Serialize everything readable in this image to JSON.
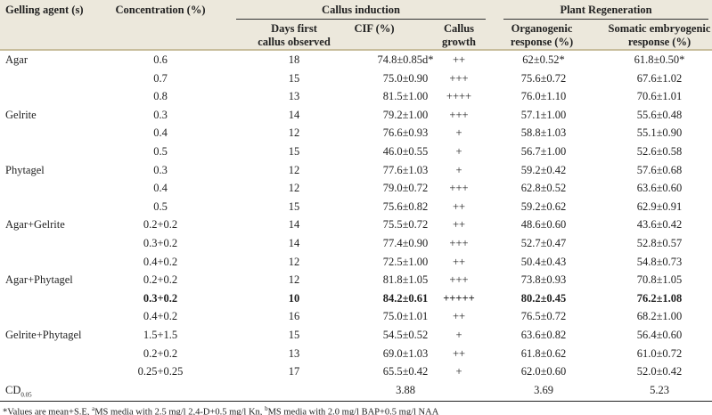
{
  "header": {
    "gelling_agent": "Gelling agent (s)",
    "concentration": "Concentration (%)",
    "callus_induction": "Callus induction",
    "plant_regeneration": "Plant Regeneration",
    "days_line1": "Days first",
    "days_line2": "callus observed",
    "cif": "CIF (%)",
    "growth_line1": "Callus",
    "growth_line2": "growth",
    "organo_line1": "Organogenic",
    "organo_line2": "response (%)",
    "somatic_line1": "Somatic embryogenic",
    "somatic_line2": "response (%)"
  },
  "rows": [
    {
      "agent": "Agar",
      "conc": "0.6",
      "days": "18",
      "cif": "74.8±0.85d*",
      "growth": "++",
      "organo": "62±0.52*",
      "somatic": "61.8±0.50*"
    },
    {
      "agent": "",
      "conc": "0.7",
      "days": "15",
      "cif": "75.0±0.90",
      "growth": "+++",
      "organo": "75.6±0.72",
      "somatic": "67.6±1.02"
    },
    {
      "agent": "",
      "conc": "0.8",
      "days": "13",
      "cif": "81.5±1.00",
      "growth": "++++",
      "organo": "76.0±1.10",
      "somatic": "70.6±1.01"
    },
    {
      "agent": "Gelrite",
      "conc": "0.3",
      "days": "14",
      "cif": "79.2±1.00",
      "growth": "+++",
      "organo": "57.1±1.00",
      "somatic": "55.6±0.48"
    },
    {
      "agent": "",
      "conc": "0.4",
      "days": "12",
      "cif": "76.6±0.93",
      "growth": "+",
      "organo": "58.8±1.03",
      "somatic": "55.1±0.90"
    },
    {
      "agent": "",
      "conc": "0.5",
      "days": "15",
      "cif": "46.0±0.55",
      "growth": "+",
      "organo": "56.7±1.00",
      "somatic": "52.6±0.58"
    },
    {
      "agent": "Phytagel",
      "conc": "0.3",
      "days": "12",
      "cif": "77.6±1.03",
      "growth": "+",
      "organo": "59.2±0.42",
      "somatic": "57.6±0.68"
    },
    {
      "agent": "",
      "conc": "0.4",
      "days": "12",
      "cif": "79.0±0.72",
      "growth": "+++",
      "organo": "62.8±0.52",
      "somatic": "63.6±0.60"
    },
    {
      "agent": "",
      "conc": "0.5",
      "days": "15",
      "cif": "75.6±0.82",
      "growth": "++",
      "organo": "59.2±0.62",
      "somatic": "62.9±0.91"
    },
    {
      "agent": "Agar+Gelrite",
      "conc": "0.2+0.2",
      "days": "14",
      "cif": "75.5±0.72",
      "growth": "++",
      "organo": "48.6±0.60",
      "somatic": "43.6±0.42"
    },
    {
      "agent": "",
      "conc": "0.3+0.2",
      "days": "14",
      "cif": "77.4±0.90",
      "growth": "+++",
      "organo": "52.7±0.47",
      "somatic": "52.8±0.57"
    },
    {
      "agent": "",
      "conc": "0.4+0.2",
      "days": "12",
      "cif": "72.5±1.00",
      "growth": "++",
      "organo": "50.4±0.43",
      "somatic": "54.8±0.73"
    },
    {
      "agent": "Agar+Phytagel",
      "conc": "0.2+0.2",
      "days": "12",
      "cif": "81.8±1.05",
      "growth": "+++",
      "organo": "73.8±0.93",
      "somatic": "70.8±1.05"
    },
    {
      "agent": "",
      "conc": "0.3+0.2",
      "days": "10",
      "cif": "84.2±0.61",
      "growth": "+++++",
      "organo": "80.2±0.45",
      "somatic": "76.2±1.08",
      "bold": true
    },
    {
      "agent": "",
      "conc": "0.4+0.2",
      "days": "16",
      "cif": "75.0±1.01",
      "growth": "++",
      "organo": "76.5±0.72",
      "somatic": "68.2±1.00"
    },
    {
      "agent": "Gelrite+Phytagel",
      "conc": "1.5+1.5",
      "days": "15",
      "cif": "54.5±0.52",
      "growth": "+",
      "organo": "63.6±0.82",
      "somatic": "56.4±0.60"
    },
    {
      "agent": "",
      "conc": "0.2+0.2",
      "days": "13",
      "cif": "69.0±1.03",
      "growth": "++",
      "organo": "61.8±0.62",
      "somatic": "61.0±0.72"
    },
    {
      "agent": "",
      "conc": "0.25+0.25",
      "days": "17",
      "cif": "65.5±0.42",
      "growth": "+",
      "organo": "62.0±0.60",
      "somatic": "52.0±0.42"
    }
  ],
  "cd": {
    "label": "CD",
    "sub": "0.05",
    "cif": "3.88",
    "organo": "3.69",
    "somatic": "5.23"
  },
  "footnote": {
    "part1": "*Values are mean+S.E, ",
    "sup_a": "a",
    "part2": "MS media with 2.5 mg/l 2,4-D+0.5 mg/l Kn, ",
    "sup_b": "b",
    "part3": "MS media with 2.0 mg/l BAP+0.5 mg/l NAA"
  }
}
